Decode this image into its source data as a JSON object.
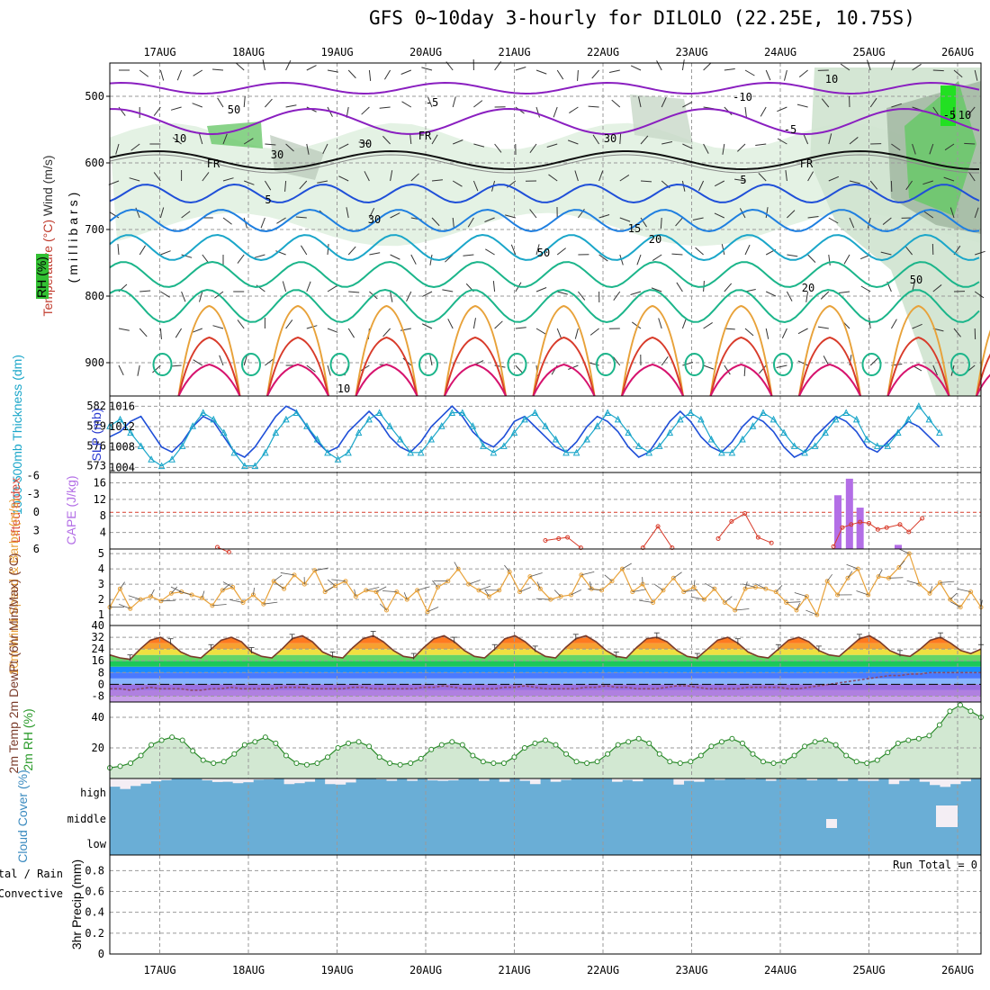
{
  "page": {
    "title": "GFS 0~10day 3-hourly for DILOLO (22.25E, 10.75S)",
    "colors": {
      "grid": "#9a9a9a",
      "purple": "#8a1fc0",
      "blue": "#1f4fd8",
      "cyan": "#1aa6c9",
      "green": "#1bb58a",
      "orange": "#e8a23a",
      "red": "#d83b2a",
      "magenta": "#d6136e",
      "cloud_blue": "#6aaed6",
      "rh_green": "#3cb34a"
    },
    "date_labels": [
      "17AUG",
      "18AUG",
      "19AUG",
      "20AUG",
      "21AUG",
      "22AUG",
      "23AUG",
      "24AUG",
      "25AUG",
      "26AUG"
    ]
  },
  "chart_data": [
    {
      "type": "line",
      "panel": "upper-air",
      "ylabel": "(millibars)",
      "side_labels": [
        "Wind (m/s)",
        "Temperature (°C)",
        "RH (%)"
      ],
      "y_ticks": [
        500,
        600,
        700,
        800,
        900
      ],
      "ylim": [
        450,
        950
      ],
      "contour_labels": [
        "-10",
        "-5",
        "-5",
        "-5",
        "FR",
        "FR",
        "FR",
        "5",
        "5",
        "10",
        "15",
        "20",
        "20",
        "10",
        "10",
        "30",
        "30",
        "30",
        "50",
        "50",
        "50",
        "10",
        "30"
      ]
    },
    {
      "type": "line",
      "panel": "slp-thickness",
      "ylabel_left": "1000-500mb Thickness (dm)",
      "ylabel_right": "SLP (mb)",
      "left_ticks": [
        573,
        576,
        579,
        582
      ],
      "right_ticks": [
        1004,
        1008,
        1012,
        1016
      ],
      "series": [
        {
          "name": "SLP (mb)",
          "color": "#1f4fd8",
          "values": [
            1010,
            1011,
            1013,
            1014,
            1011,
            1008,
            1007,
            1009,
            1012,
            1014,
            1013,
            1010,
            1007,
            1006,
            1008,
            1011,
            1014,
            1016,
            1015,
            1012,
            1009,
            1007,
            1008,
            1011,
            1013,
            1015,
            1013,
            1010,
            1008,
            1007,
            1009,
            1012,
            1014,
            1016,
            1014,
            1011,
            1009,
            1008,
            1010,
            1013,
            1014,
            1012,
            1010,
            1008,
            1007,
            1009,
            1012,
            1014,
            1013,
            1011,
            1008,
            1006,
            1007,
            1010,
            1013,
            1015,
            1013,
            1010,
            1008,
            1007,
            1009,
            1012,
            1014,
            1013,
            1011,
            1008,
            1006,
            1007,
            1010,
            1012,
            1014,
            1013,
            1011,
            1008,
            1007,
            1009,
            1011,
            1013,
            1012,
            1010,
            1008
          ]
        },
        {
          "name": "Thickness (dm)",
          "color": "#1aa6c9",
          "values": [
            579,
            580,
            578,
            576,
            574,
            573,
            574,
            576,
            579,
            581,
            580,
            578,
            575,
            573,
            573,
            575,
            578,
            580,
            581,
            579,
            577,
            575,
            574,
            575,
            578,
            580,
            581,
            579,
            577,
            575,
            575,
            577,
            579,
            581,
            581,
            579,
            576,
            575,
            576,
            578,
            580,
            581,
            579,
            577,
            575,
            575,
            577,
            579,
            581,
            580,
            578,
            576,
            575,
            576,
            578,
            580,
            581,
            580,
            577,
            575,
            575,
            577,
            579,
            581,
            580,
            578,
            576,
            575,
            576,
            578,
            580,
            581,
            580,
            577,
            576,
            576,
            578,
            580,
            582,
            580,
            578
          ]
        }
      ]
    },
    {
      "type": "bar",
      "panel": "stability",
      "ylabel_left": "Lifted Index",
      "ylabel_right": "CAPE (J/kg)",
      "left_ticks": [
        "6",
        "3",
        "0",
        "-3",
        "-6"
      ],
      "right_ticks": [
        4,
        8,
        12,
        16
      ],
      "cape_bars": [
        {
          "day": 8.65,
          "value": 13
        },
        {
          "day": 8.78,
          "value": 17
        },
        {
          "day": 8.9,
          "value": 10
        },
        {
          "day": 9.33,
          "value": 1
        }
      ],
      "lifted_index": [
        {
          "day": 1.65,
          "value": 5.7
        },
        {
          "day": 1.78,
          "value": 6.5
        },
        {
          "day": 5.35,
          "value": 4.6
        },
        {
          "day": 5.5,
          "value": 4.3
        },
        {
          "day": 5.6,
          "value": 4.1
        },
        {
          "day": 5.75,
          "value": 5.8
        },
        {
          "day": 6.45,
          "value": 5.8
        },
        {
          "day": 6.62,
          "value": 2.3
        },
        {
          "day": 6.78,
          "value": 5.8
        },
        {
          "day": 7.3,
          "value": 4.3
        },
        {
          "day": 7.45,
          "value": 1.5
        },
        {
          "day": 7.6,
          "value": 0.2
        },
        {
          "day": 7.75,
          "value": 4.1
        },
        {
          "day": 7.9,
          "value": 5.0
        },
        {
          "day": 8.6,
          "value": 5.6
        },
        {
          "day": 8.7,
          "value": 2.5
        },
        {
          "day": 8.8,
          "value": 2.0
        },
        {
          "day": 8.9,
          "value": 1.6
        },
        {
          "day": 9.0,
          "value": 1.8
        },
        {
          "day": 9.1,
          "value": 2.8
        },
        {
          "day": 9.2,
          "value": 2.5
        },
        {
          "day": 9.35,
          "value": 2.0
        },
        {
          "day": 9.45,
          "value": 3.2
        },
        {
          "day": 9.6,
          "value": 1.0
        }
      ]
    },
    {
      "type": "line",
      "panel": "wind-10m",
      "ylabel": "10m Wind Speed & Barbs (m/s)",
      "y_ticks": [
        1,
        2,
        3,
        4,
        5
      ],
      "series": [
        {
          "name": "10m Wind Speed",
          "color": "#e8a23a",
          "values": [
            1.5,
            2.7,
            1.4,
            2.0,
            2.2,
            1.9,
            2.4,
            2.5,
            2.3,
            2.1,
            1.6,
            2.6,
            2.8,
            1.8,
            2.3,
            1.7,
            3.2,
            2.7,
            3.6,
            3.0,
            3.9,
            2.5,
            2.9,
            3.2,
            2.2,
            2.6,
            2.5,
            1.3,
            2.5,
            2.0,
            2.6,
            1.2,
            2.8,
            3.2,
            4.0,
            3.0,
            2.6,
            2.2,
            2.6,
            3.8,
            2.5,
            3.5,
            2.7,
            2.0,
            2.2,
            2.3,
            3.6,
            2.7,
            2.6,
            3.2,
            4.0,
            2.5,
            3.0,
            1.8,
            2.6,
            3.4,
            2.5,
            2.8,
            2.0,
            2.7,
            1.8,
            1.3,
            2.7,
            2.8,
            2.7,
            2.5,
            1.8,
            1.3,
            2.2,
            1.0,
            3.2,
            2.3,
            3.4,
            4.0,
            2.3,
            3.5,
            3.4,
            4.1,
            5.0,
            3.0,
            2.4,
            3.1,
            2.0,
            1.5,
            2.5,
            1.5
          ]
        }
      ]
    },
    {
      "type": "area",
      "panel": "temperature",
      "ylabel": "2m Temp 2m DewPt (6hr Min/Max) (°C)",
      "y_ticks": [
        -8,
        0,
        8,
        16,
        24,
        32,
        40
      ],
      "series": [
        {
          "name": "2m Temp",
          "color": "#7a3b2a",
          "values": [
            20,
            18,
            17,
            24,
            30,
            32,
            28,
            22,
            19,
            18,
            24,
            30,
            32,
            29,
            22,
            19,
            18,
            24,
            31,
            33,
            29,
            22,
            19,
            18,
            25,
            31,
            33,
            29,
            23,
            19,
            18,
            25,
            31,
            33,
            29,
            23,
            19,
            18,
            24,
            31,
            33,
            29,
            23,
            19,
            18,
            25,
            31,
            33,
            29,
            23,
            19,
            18,
            25,
            31,
            32,
            29,
            23,
            19,
            18,
            24,
            30,
            32,
            28,
            22,
            19,
            18,
            24,
            30,
            32,
            29,
            23,
            20,
            19,
            25,
            31,
            33,
            29,
            23,
            20,
            19,
            24,
            30,
            32,
            28,
            23,
            21,
            24
          ]
        },
        {
          "name": "2m DewPt",
          "color": "#8a4b6a",
          "values": [
            -3,
            -3,
            -4,
            -3,
            -2,
            -3,
            -3,
            -3,
            -4,
            -4,
            -3,
            -3,
            -2,
            -3,
            -3,
            -3,
            -3,
            -2,
            -2,
            -2,
            -3,
            -3,
            -3,
            -3,
            -2,
            -2,
            -3,
            -3,
            -3,
            -3,
            -3,
            -2,
            -2,
            -1,
            -2,
            -3,
            -3,
            -3,
            -3,
            -2,
            -2,
            -1,
            -2,
            -3,
            -3,
            -3,
            -3,
            -2,
            -2,
            -1,
            -2,
            -2,
            -3,
            -3,
            -3,
            -2,
            -1,
            -1,
            -2,
            -3,
            -3,
            -3,
            -3,
            -2,
            -2,
            -2,
            -2,
            -3,
            -3,
            -2,
            -1,
            0,
            1,
            2,
            3,
            4,
            5,
            6,
            6,
            7,
            7,
            8,
            8,
            8,
            8,
            8,
            8
          ]
        }
      ]
    },
    {
      "type": "area",
      "panel": "relative-humidity",
      "ylabel": "2m RH (%)",
      "y_ticks": [
        20,
        40
      ],
      "series": [
        {
          "name": "2m RH",
          "color": "#2a8a2a",
          "values": [
            7,
            8,
            10,
            15,
            22,
            25,
            27,
            25,
            18,
            12,
            10,
            11,
            16,
            22,
            24,
            27,
            23,
            15,
            10,
            9,
            10,
            14,
            20,
            23,
            24,
            21,
            14,
            10,
            9,
            10,
            13,
            19,
            22,
            24,
            22,
            15,
            11,
            10,
            10,
            14,
            20,
            23,
            25,
            22,
            16,
            11,
            10,
            11,
            16,
            22,
            24,
            26,
            23,
            16,
            11,
            10,
            11,
            15,
            21,
            24,
            26,
            23,
            16,
            11,
            10,
            11,
            15,
            21,
            24,
            25,
            22,
            15,
            11,
            10,
            12,
            17,
            23,
            25,
            26,
            28,
            35,
            44,
            48,
            44,
            40
          ]
        }
      ]
    },
    {
      "type": "bar",
      "panel": "cloud-cover",
      "ylabel": "Cloud Cover (%)",
      "y_ticks": [
        "high",
        "middle",
        "low"
      ],
      "high_cover_percent": [
        65,
        55,
        68,
        78,
        88,
        93,
        100,
        98,
        100,
        92,
        85,
        86,
        80,
        84,
        95,
        96,
        100,
        76,
        80,
        86,
        99,
        76,
        74,
        83,
        100,
        98,
        96,
        90,
        100,
        90,
        100,
        92,
        90,
        92,
        100,
        100,
        90,
        100,
        86,
        100,
        90,
        76,
        100,
        86,
        94,
        100,
        100,
        100,
        100,
        86,
        94,
        88,
        100,
        100,
        100,
        74,
        90,
        86,
        100,
        94,
        100,
        100,
        96,
        100,
        90,
        100,
        96,
        100,
        92,
        100,
        100,
        90,
        100,
        90,
        90,
        100,
        76,
        90,
        100,
        86,
        72,
        64,
        76,
        88,
        100
      ]
    },
    {
      "type": "bar",
      "panel": "precipitation",
      "ylabel": "3hr Precip (mm)",
      "side_labels": [
        "Total / Rain",
        "Convective"
      ],
      "annotation": "Run Total = 0",
      "y_ticks": [
        0,
        0.2,
        0.4,
        0.6,
        0.8
      ],
      "ylim": [
        0,
        0.95
      ],
      "values": []
    }
  ]
}
